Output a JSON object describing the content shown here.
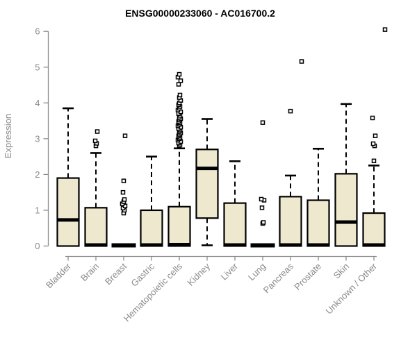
{
  "chart_data": {
    "type": "boxplot",
    "title": "ENSG00000233060 - AC016700.2",
    "ylabel": "Expression",
    "xlabel": "",
    "ylim": [
      0,
      6
    ],
    "yticks": [
      0,
      1,
      2,
      3,
      4,
      5,
      6
    ],
    "grid": false,
    "legend": "none",
    "marker_style": "open-square",
    "colors": {
      "box_fill": "#ede8ce",
      "box_stroke": "#000000",
      "median": "#000000",
      "whisker": "#000000",
      "outlier_stroke": "#000000",
      "outlier_fill": "#ffffff",
      "axis": "#8a8a8a",
      "tick_text": "#8a8a8a",
      "title_text": "#000000",
      "background": "#ffffff"
    },
    "categories": [
      "Bladder",
      "Brain",
      "Breast",
      "Gastric",
      "Hematopoietic cells",
      "Kidney",
      "Liver",
      "Lung",
      "Pancreas",
      "Prostate",
      "Skin",
      "Unknown / Other"
    ],
    "series": [
      {
        "category": "Bladder",
        "low": 0,
        "q1": 0,
        "median": 0.73,
        "q3": 1.9,
        "high": 3.85,
        "outliers": []
      },
      {
        "category": "Brain",
        "low": 0,
        "q1": 0,
        "median": 0.03,
        "q3": 1.07,
        "high": 2.6,
        "outliers": [
          2.8,
          2.87,
          2.94,
          3.2
        ]
      },
      {
        "category": "Breast",
        "low": 0.02,
        "q1": 0.02,
        "median": 0.02,
        "q3": 0.02,
        "high": 0.02,
        "outliers": [
          0.92,
          1.0,
          1.06,
          1.12,
          1.18,
          1.24,
          1.3,
          1.5,
          1.82,
          3.08
        ]
      },
      {
        "category": "Gastric",
        "low": 0,
        "q1": 0,
        "median": 0.03,
        "q3": 1.0,
        "high": 2.5,
        "outliers": []
      },
      {
        "category": "Hematopoietic cells",
        "low": 0,
        "q1": 0,
        "median": 0.04,
        "q3": 1.1,
        "high": 2.73,
        "outliers": [
          2.8,
          2.84,
          2.88,
          2.92,
          2.96,
          3.0,
          3.04,
          3.08,
          3.12,
          3.16,
          3.2,
          3.24,
          3.28,
          3.32,
          3.36,
          3.4,
          3.44,
          3.48,
          3.52,
          3.56,
          3.6,
          3.65,
          3.7,
          3.75,
          3.8,
          3.85,
          3.9,
          3.95,
          4.0,
          4.07,
          4.15,
          4.22,
          4.52,
          4.62,
          4.72,
          4.8
        ]
      },
      {
        "category": "Kidney",
        "low": 0.02,
        "q1": 0.78,
        "median": 2.17,
        "q3": 2.7,
        "high": 3.55,
        "outliers": []
      },
      {
        "category": "Liver",
        "low": 0,
        "q1": 0,
        "median": 0.03,
        "q3": 1.2,
        "high": 2.37,
        "outliers": []
      },
      {
        "category": "Lung",
        "low": 0.02,
        "q1": 0.02,
        "median": 0.02,
        "q3": 0.02,
        "high": 0.02,
        "outliers": [
          0.63,
          0.66,
          1.07,
          1.28,
          1.31,
          3.45
        ]
      },
      {
        "category": "Pancreas",
        "low": 0,
        "q1": 0,
        "median": 0.03,
        "q3": 1.38,
        "high": 1.97,
        "outliers": [
          3.77,
          5.16
        ]
      },
      {
        "category": "Prostate",
        "low": 0,
        "q1": 0,
        "median": 0.03,
        "q3": 1.28,
        "high": 2.72,
        "outliers": []
      },
      {
        "category": "Skin",
        "low": 0,
        "q1": 0,
        "median": 0.67,
        "q3": 2.02,
        "high": 3.97,
        "outliers": []
      },
      {
        "category": "Unknown / Other",
        "low": 0,
        "q1": 0,
        "median": 0.03,
        "q3": 0.92,
        "high": 2.25,
        "outliers": [
          2.38,
          2.8,
          2.86,
          3.08,
          3.58,
          6.05
        ]
      }
    ]
  }
}
